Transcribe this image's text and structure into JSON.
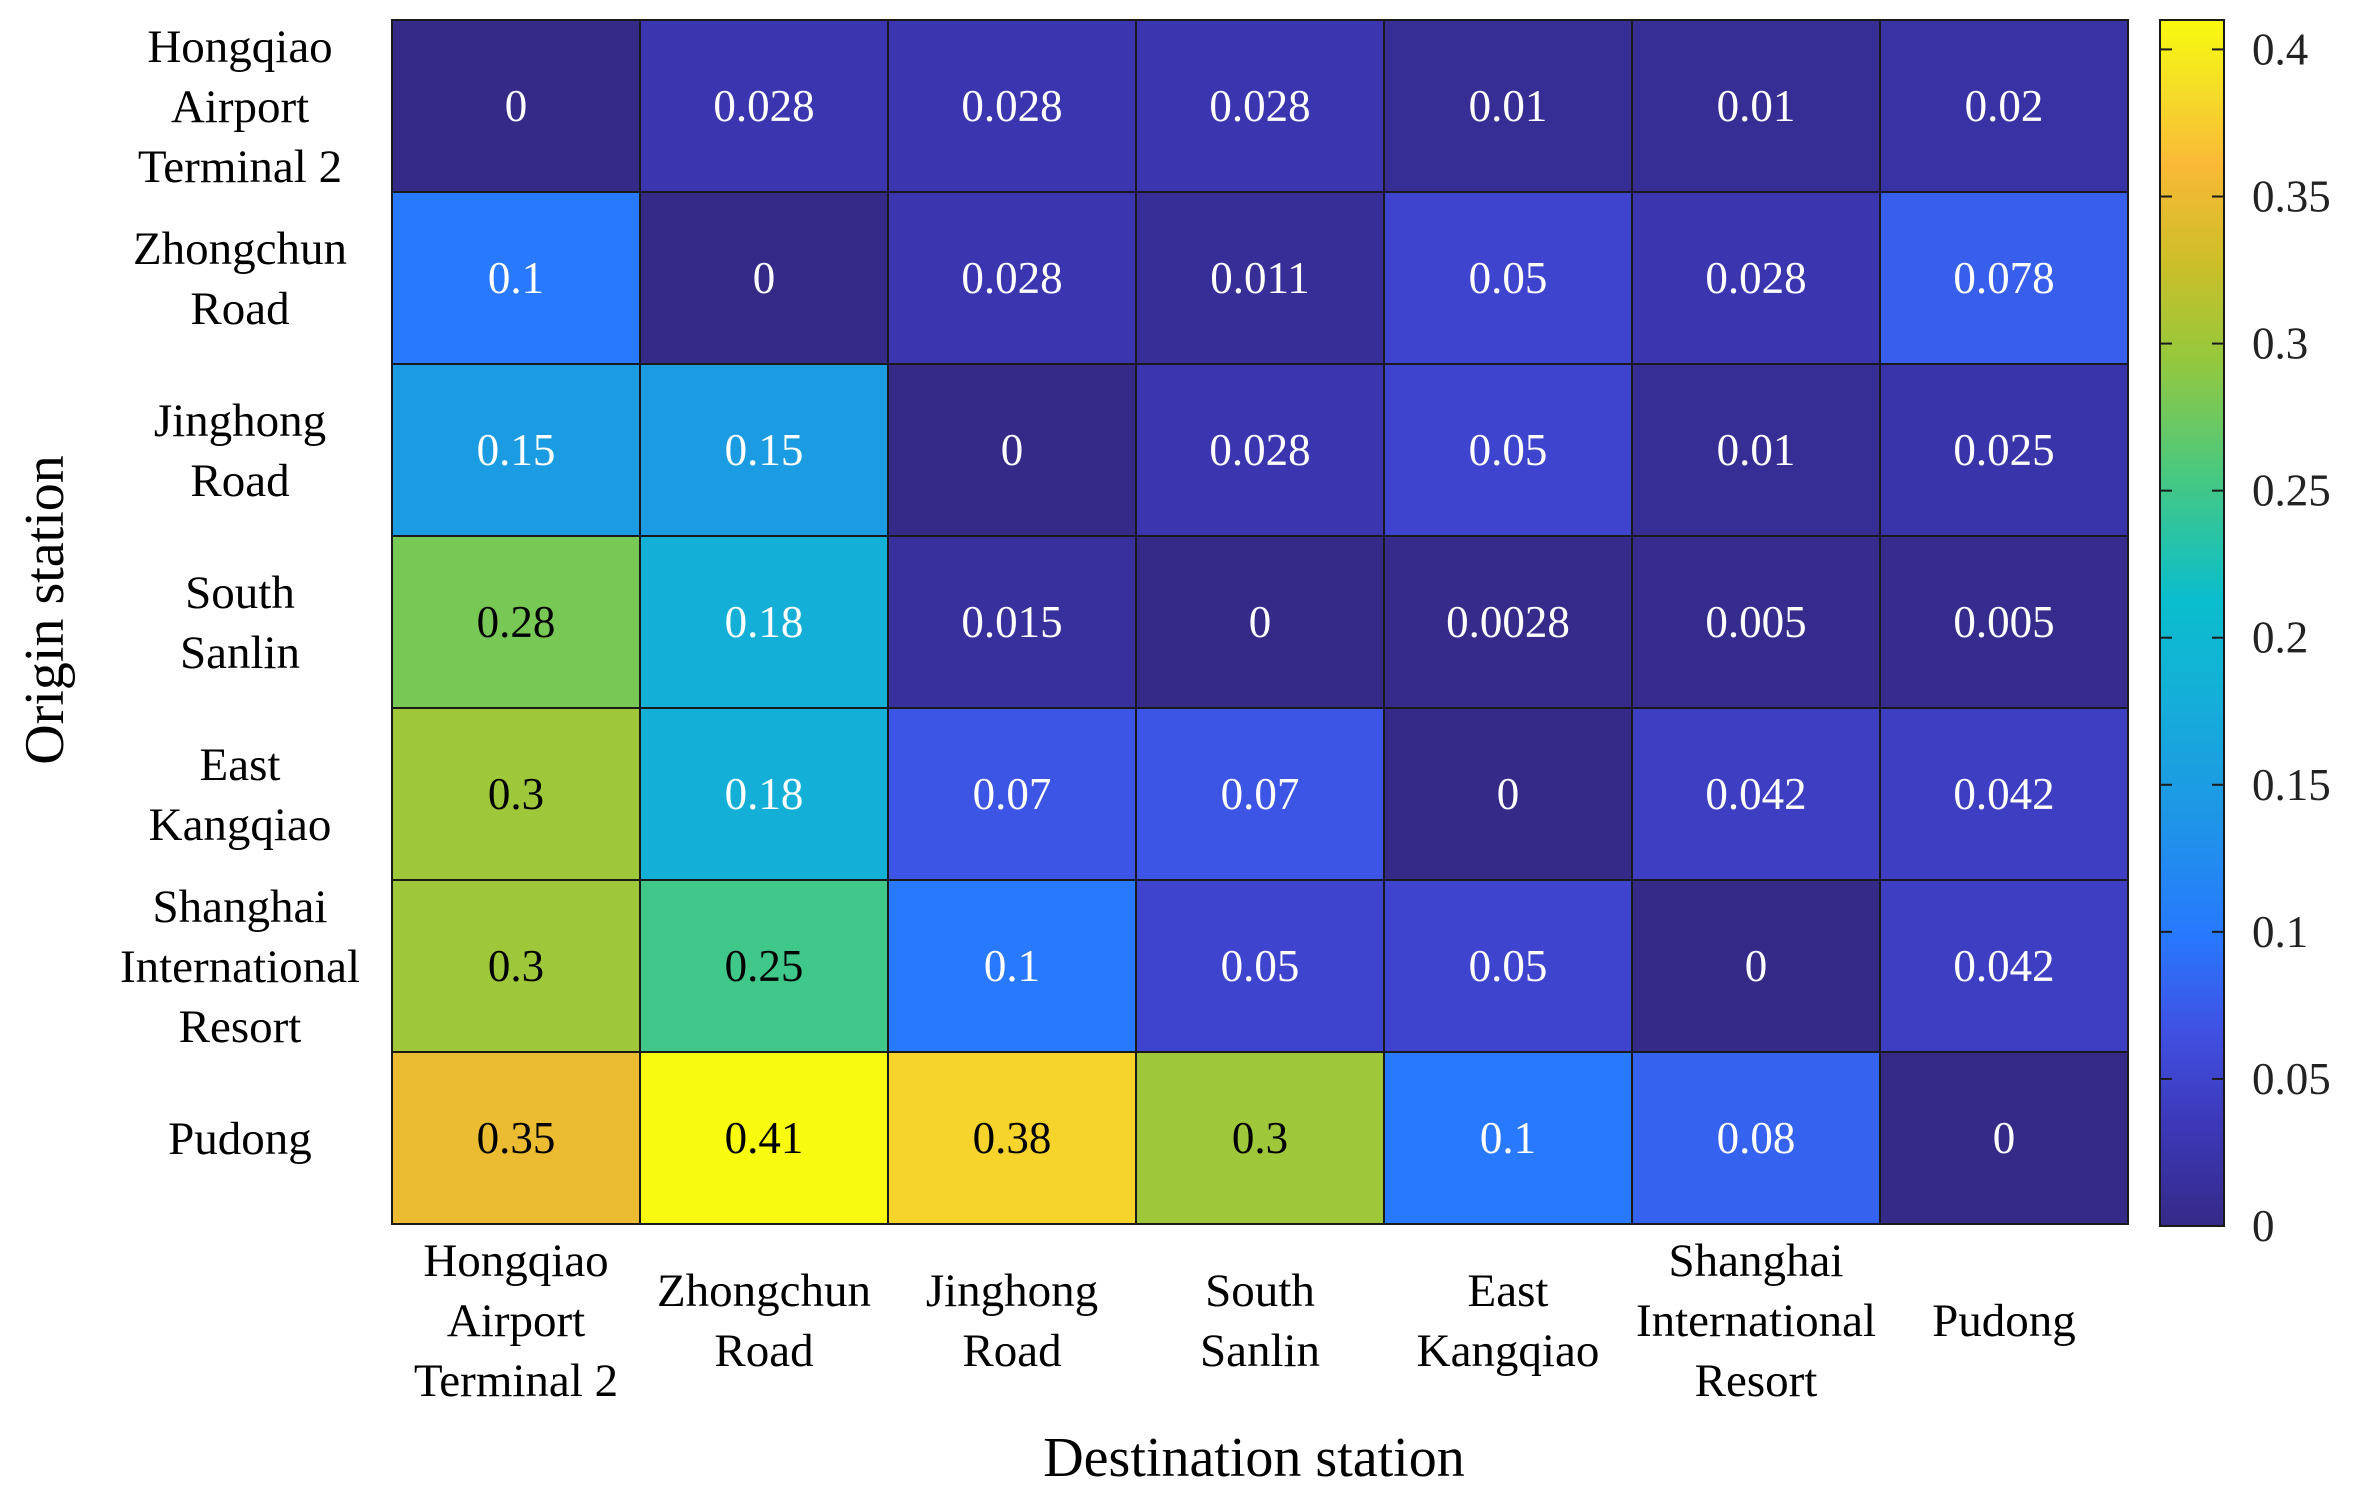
{
  "chart_data": {
    "type": "heatmap",
    "title": "",
    "xlabel": "Destination station",
    "ylabel": "Origin station",
    "x_categories": [
      [
        "Hongqiao",
        "Airport",
        "Terminal 2"
      ],
      [
        "Zhongchun",
        "Road"
      ],
      [
        "Jinghong",
        "Road"
      ],
      [
        "South",
        "Sanlin"
      ],
      [
        "East",
        "Kangqiao"
      ],
      [
        "Shanghai",
        "International",
        "Resort"
      ],
      [
        "Pudong"
      ]
    ],
    "y_categories": [
      [
        "Hongqiao",
        "Airport",
        "Terminal 2"
      ],
      [
        "Zhongchun",
        "Road"
      ],
      [
        "Jinghong",
        "Road"
      ],
      [
        "South",
        "Sanlin"
      ],
      [
        "East",
        "Kangqiao"
      ],
      [
        "Shanghai",
        "International",
        "Resort"
      ],
      [
        "Pudong"
      ]
    ],
    "values": [
      [
        0,
        0.028,
        0.028,
        0.028,
        0.01,
        0.01,
        0.02
      ],
      [
        0.1,
        0,
        0.028,
        0.011,
        0.05,
        0.028,
        0.078
      ],
      [
        0.15,
        0.15,
        0,
        0.028,
        0.05,
        0.01,
        0.025
      ],
      [
        0.28,
        0.18,
        0.015,
        0,
        0.0028,
        0.005,
        0.005
      ],
      [
        0.3,
        0.18,
        0.07,
        0.07,
        0,
        0.042,
        0.042
      ],
      [
        0.3,
        0.25,
        0.1,
        0.05,
        0.05,
        0,
        0.042
      ],
      [
        0.35,
        0.41,
        0.38,
        0.3,
        0.1,
        0.08,
        0
      ]
    ],
    "value_labels": [
      [
        "0",
        "0.028",
        "0.028",
        "0.028",
        "0.01",
        "0.01",
        "0.02"
      ],
      [
        "0.1",
        "0",
        "0.028",
        "0.011",
        "0.05",
        "0.028",
        "0.078"
      ],
      [
        "0.15",
        "0.15",
        "0",
        "0.028",
        "0.05",
        "0.01",
        "0.025"
      ],
      [
        "0.28",
        "0.18",
        "0.015",
        "0",
        "0.0028",
        "0.005",
        "0.005"
      ],
      [
        "0.3",
        "0.18",
        "0.07",
        "0.07",
        "0",
        "0.042",
        "0.042"
      ],
      [
        "0.3",
        "0.25",
        "0.1",
        "0.05",
        "0.05",
        "0",
        "0.042"
      ],
      [
        "0.35",
        "0.41",
        "0.38",
        "0.3",
        "0.1",
        "0.08",
        "0"
      ]
    ],
    "colormap": "parula",
    "colorbar": {
      "range": [
        0,
        0.41
      ],
      "ticks": [
        0,
        0.05,
        0.1,
        0.15,
        0.2,
        0.25,
        0.3,
        0.35,
        0.4
      ],
      "tick_labels": [
        "0",
        "0.05",
        "0.1",
        "0.15",
        "0.2",
        "0.25",
        "0.3",
        "0.35",
        "0.4"
      ]
    },
    "colors": {
      "grid_line": "#1a1a1a",
      "text_on_dark": "#ffffff",
      "text_on_light": "#000000"
    }
  }
}
